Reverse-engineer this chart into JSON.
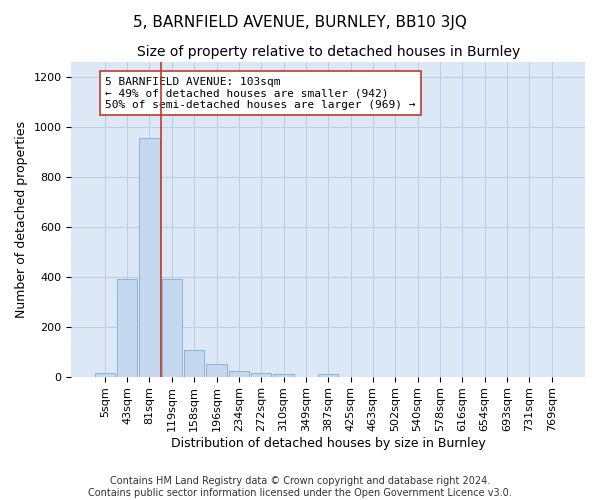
{
  "title1": "5, BARNFIELD AVENUE, BURNLEY, BB10 3JQ",
  "title2": "Size of property relative to detached houses in Burnley",
  "xlabel": "Distribution of detached houses by size in Burnley",
  "ylabel": "Number of detached properties",
  "footer1": "Contains HM Land Registry data © Crown copyright and database right 2024.",
  "footer2": "Contains public sector information licensed under the Open Government Licence v3.0.",
  "categories": [
    "5sqm",
    "43sqm",
    "81sqm",
    "119sqm",
    "158sqm",
    "196sqm",
    "234sqm",
    "272sqm",
    "310sqm",
    "349sqm",
    "387sqm",
    "425sqm",
    "463sqm",
    "502sqm",
    "540sqm",
    "578sqm",
    "616sqm",
    "654sqm",
    "693sqm",
    "731sqm",
    "769sqm"
  ],
  "values": [
    13,
    390,
    955,
    390,
    107,
    49,
    22,
    15,
    12,
    0,
    10,
    0,
    0,
    0,
    0,
    0,
    0,
    0,
    0,
    0,
    0
  ],
  "bar_color": "#c5d8f0",
  "bar_edge_color": "#7aadd4",
  "vline_x": 2.5,
  "vline_color": "#c0392b",
  "annotation_text": "5 BARNFIELD AVENUE: 103sqm\n← 49% of detached houses are smaller (942)\n50% of semi-detached houses are larger (969) →",
  "annotation_box_color": "white",
  "annotation_box_edge_color": "#c0392b",
  "ylim": [
    0,
    1260
  ],
  "yticks": [
    0,
    200,
    400,
    600,
    800,
    1000,
    1200
  ],
  "grid_color": "#b8c8e0",
  "bg_color": "#dce8f5",
  "title1_fontsize": 11,
  "title2_fontsize": 10,
  "xlabel_fontsize": 9,
  "ylabel_fontsize": 9,
  "tick_fontsize": 8,
  "footer_fontsize": 7,
  "annotation_fontsize": 8
}
